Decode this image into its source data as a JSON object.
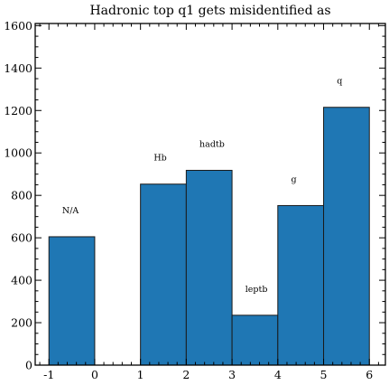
{
  "chart_data": {
    "type": "bar",
    "title": "Hadronic top q1 gets misidentified as",
    "xlabel": "",
    "ylabel": "",
    "bins": [
      {
        "x0": -1,
        "x1": 0,
        "value": 605,
        "label": "N/A"
      },
      {
        "x0": 1,
        "x1": 2,
        "value": 853,
        "label": "Hb"
      },
      {
        "x0": 2,
        "x1": 3,
        "value": 918,
        "label": "hadtb"
      },
      {
        "x0": 3,
        "x1": 4,
        "value": 235,
        "label": "leptb"
      },
      {
        "x0": 4,
        "x1": 5,
        "value": 752,
        "label": "g"
      },
      {
        "x0": 5,
        "x1": 6,
        "value": 1215,
        "label": "q"
      }
    ],
    "xlim": [
      -1.3,
      6.35
    ],
    "ylim": [
      0,
      1610
    ],
    "xticks": [
      -1,
      0,
      1,
      2,
      3,
      4,
      5,
      6
    ],
    "yticks": [
      0,
      200,
      400,
      600,
      800,
      1000,
      1200,
      1400,
      1600
    ],
    "bar_color": "#1f77b4",
    "edge_color": "#1a1a1a",
    "grid": false,
    "legend": "none"
  }
}
